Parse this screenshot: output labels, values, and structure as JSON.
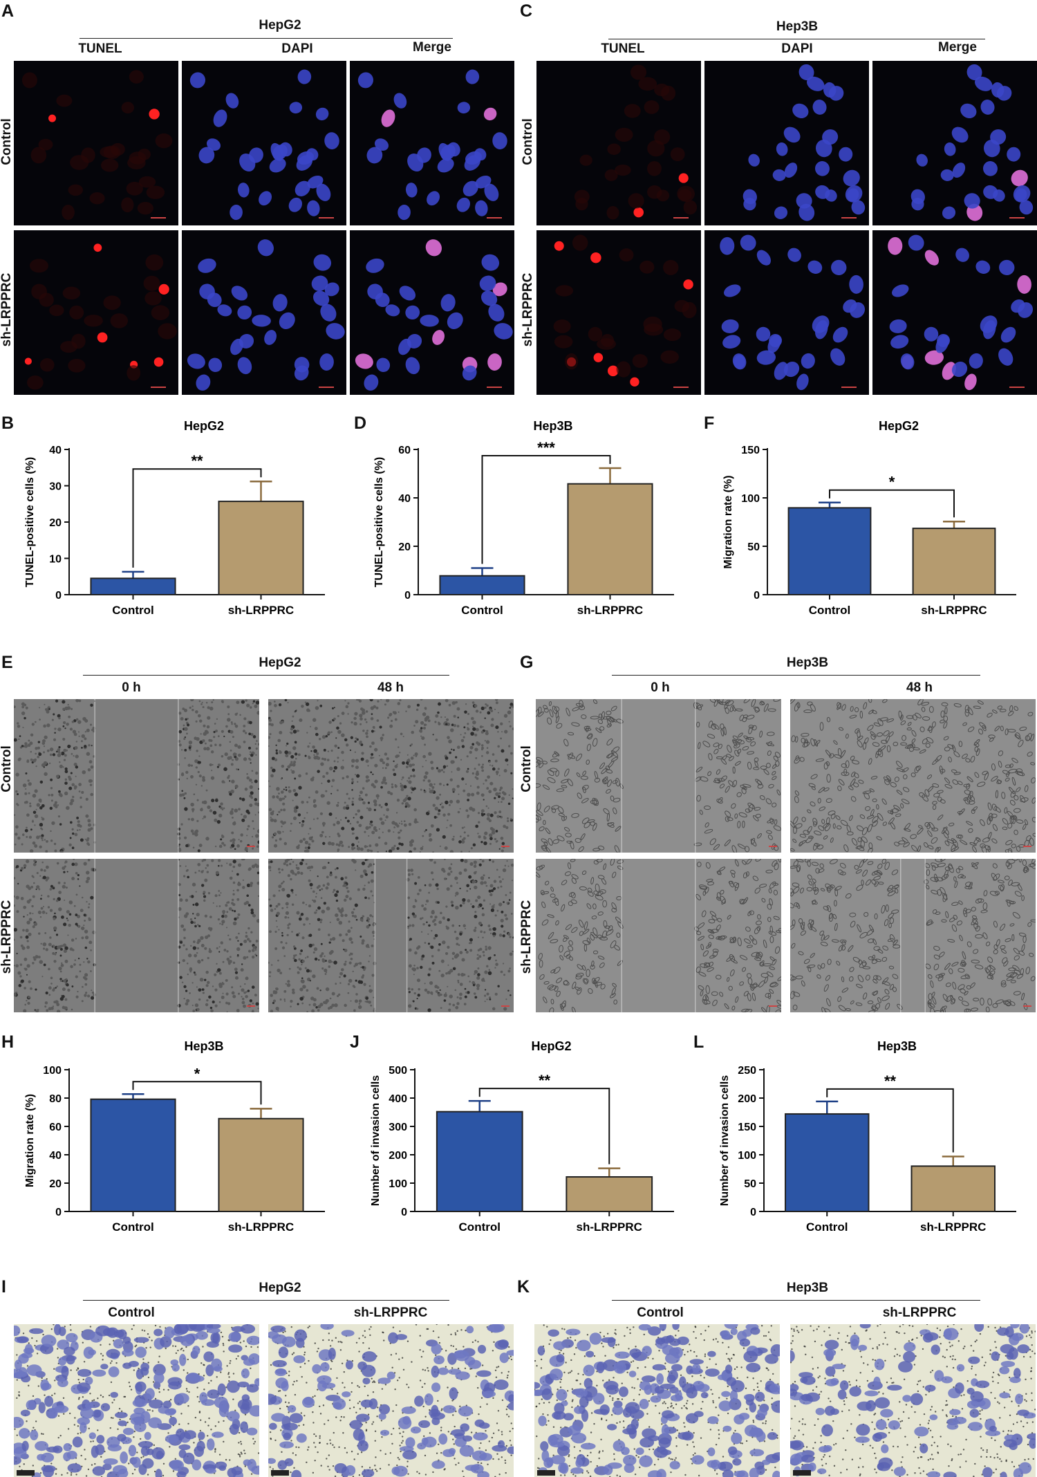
{
  "panel_letters": {
    "A": "A",
    "B": "B",
    "C": "C",
    "D": "D",
    "E": "E",
    "F": "F",
    "G": "G",
    "H": "H",
    "I": "I",
    "J": "J",
    "K": "K",
    "L": "L"
  },
  "cell_lines": {
    "hepg2": "HepG2",
    "hep3b": "Hep3B"
  },
  "groups": {
    "control": "Control",
    "sh": "sh-LRPPRC"
  },
  "stains": {
    "tunel": "TUNEL",
    "dapi": "DAPI",
    "merge": "Merge"
  },
  "times": {
    "t0": "0 h",
    "t48": "48 h"
  },
  "colors": {
    "control_bar": "#2c55a5",
    "sh_bar": "#b59b6f",
    "dapi_blue": "#3b46c8",
    "tunel_red": "#ff2222",
    "merge_pink": "#e070d8"
  },
  "chart_data": [
    {
      "panel": "B",
      "type": "bar",
      "title": "HepG2",
      "ylabel": "TUNEL-positive cells (%)",
      "categories": [
        "Control",
        "sh-LRPPRC"
      ],
      "values": [
        4.5,
        25.7
      ],
      "errors": [
        1.8,
        5.5
      ],
      "ylim": [
        0,
        40
      ],
      "yticks": [
        0,
        10,
        20,
        30,
        40
      ],
      "significance": "**",
      "bar_colors": [
        "#2c55a5",
        "#b59b6f"
      ]
    },
    {
      "panel": "D",
      "type": "bar",
      "title": "Hep3B",
      "ylabel": "TUNEL-positive cells (%)",
      "categories": [
        "Control",
        "sh-LRPPRC"
      ],
      "values": [
        7.8,
        45.8
      ],
      "errors": [
        3.2,
        6.5
      ],
      "ylim": [
        0,
        60
      ],
      "yticks": [
        0,
        20,
        40,
        60
      ],
      "significance": "***",
      "bar_colors": [
        "#2c55a5",
        "#b59b6f"
      ]
    },
    {
      "panel": "F",
      "type": "bar",
      "title": "HepG2",
      "ylabel": "Migration rate (%)",
      "categories": [
        "Control",
        "sh-LRPPRC"
      ],
      "values": [
        89.7,
        68.5
      ],
      "errors": [
        5.5,
        7.0
      ],
      "ylim": [
        0,
        150
      ],
      "yticks": [
        0,
        50,
        100,
        150
      ],
      "significance": "*",
      "bar_colors": [
        "#2c55a5",
        "#b59b6f"
      ]
    },
    {
      "panel": "H",
      "type": "bar",
      "title": "Hep3B",
      "ylabel": "Migration rate (%)",
      "categories": [
        "Control",
        "sh-LRPPRC"
      ],
      "values": [
        79.2,
        65.5
      ],
      "errors": [
        3.6,
        7.0
      ],
      "ylim": [
        0,
        100
      ],
      "yticks": [
        0,
        20,
        40,
        60,
        80,
        100
      ],
      "significance": "*",
      "bar_colors": [
        "#2c55a5",
        "#b59b6f"
      ]
    },
    {
      "panel": "J",
      "type": "bar",
      "title": "HepG2",
      "ylabel": "Number of invasion cells",
      "categories": [
        "Control",
        "sh-LRPPRC"
      ],
      "values": [
        352,
        122
      ],
      "errors": [
        38,
        30
      ],
      "ylim": [
        0,
        500
      ],
      "yticks": [
        0,
        100,
        200,
        300,
        400,
        500
      ],
      "significance": "**",
      "bar_colors": [
        "#2c55a5",
        "#b59b6f"
      ]
    },
    {
      "panel": "L",
      "type": "bar",
      "title": "Hep3B",
      "ylabel": "Number of invasion cells",
      "categories": [
        "Control",
        "sh-LRPPRC"
      ],
      "values": [
        172,
        80
      ],
      "errors": [
        22,
        17
      ],
      "ylim": [
        0,
        250
      ],
      "yticks": [
        0,
        50,
        100,
        150,
        200,
        250
      ],
      "significance": "**",
      "bar_colors": [
        "#2c55a5",
        "#b59b6f"
      ]
    }
  ]
}
